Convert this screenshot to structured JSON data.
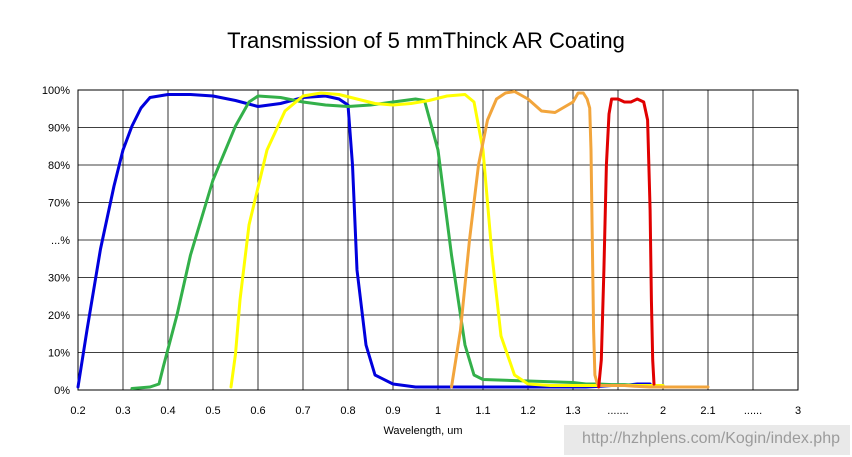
{
  "chart_data": {
    "type": "line",
    "title": "Transmission of 5 mmThinck AR Coating",
    "xlabel": "Wavelength, um",
    "ylabel": "",
    "x_ticks": [
      "0.2",
      "0.3",
      "0.4",
      "0.5",
      "0.6",
      "0.7",
      "0.8",
      "0.9",
      "1",
      "1.1",
      "1.2",
      "1.3",
      ".......",
      "2",
      "2.1",
      "......",
      "3"
    ],
    "y_ticks": [
      "0%",
      "10%",
      "20%",
      "30%",
      "...%",
      "70%",
      "80%",
      "90%",
      "100%"
    ],
    "ylim": [
      0,
      100
    ],
    "grid": true,
    "legend": "none",
    "series": [
      {
        "color": "#0000dd",
        "x": [
          "0.2",
          "0.22",
          "0.25",
          "0.28",
          "0.3",
          "0.32",
          "0.34",
          "0.36",
          "0.4",
          "0.45",
          "0.5",
          "0.55",
          "0.6",
          "0.65",
          "0.7",
          "0.75",
          "0.78",
          "0.8",
          "0.81",
          "0.82",
          "0.84",
          "0.86",
          "0.9",
          "0.95",
          "1",
          "1.1",
          "1.2",
          "1.3",
          "1.4",
          "1.5",
          "1.6",
          "1.7",
          "1.8",
          "1.9"
        ],
        "y": [
          1,
          20,
          47,
          68,
          80,
          88,
          94,
          97.5,
          98.5,
          98.5,
          98,
          96.5,
          94.5,
          95.5,
          97.5,
          98,
          97,
          95,
          75,
          40,
          15,
          5,
          2,
          1,
          1,
          1,
          1,
          1,
          1,
          1.2,
          1.5,
          1.5,
          2,
          2
        ]
      },
      {
        "color": "#33b04a",
        "x": [
          "0.32",
          "0.36",
          "0.38",
          "0.39",
          "0.42",
          "0.45",
          "0.5",
          "0.55",
          "0.58",
          "0.6",
          "0.65",
          "0.7",
          "0.75",
          "0.8",
          "0.85",
          "0.9",
          "0.95",
          "0.97",
          "1",
          "1.03",
          "1.06",
          "1.08",
          "1.1",
          "1.2",
          "1.3",
          "1.4",
          "1.5",
          "1.6",
          "1.7",
          "1.8",
          "1.9",
          "2"
        ],
        "y": [
          0.5,
          1,
          2,
          8,
          25,
          45,
          70,
          88,
          96,
          98,
          97.5,
          96,
          95,
          94.5,
          95,
          96,
          97,
          96.5,
          80,
          45,
          15,
          5,
          3.5,
          3,
          2.5,
          2,
          2,
          1.8,
          1.8,
          1.5,
          1.5,
          1.5
        ]
      },
      {
        "color": "#ffff00",
        "x": [
          "0.54",
          "0.55",
          "0.56",
          "0.58",
          "0.62",
          "0.66",
          "0.7",
          "0.74",
          "0.78",
          "0.82",
          "0.86",
          "0.9",
          "0.94",
          "0.98",
          "1.02",
          "1.06",
          "1.08",
          "1.1",
          "1.12",
          "1.14",
          "1.17",
          "1.2",
          "1.25",
          "1.3",
          "1.4",
          "1.5",
          "1.6",
          "1.7",
          "1.8",
          "1.9",
          "2"
        ],
        "y": [
          1,
          12,
          30,
          55,
          80,
          93,
          98,
          99,
          98.5,
          97,
          95.5,
          95,
          95.5,
          96.5,
          98,
          98.5,
          96,
          80,
          45,
          18,
          5,
          2,
          1.5,
          1.5,
          1.5,
          1.5,
          1.5,
          1.5,
          1.5,
          1.5,
          1.5
        ]
      },
      {
        "color": "#f2a53c",
        "x": [
          "1.03",
          "1.05",
          "1.07",
          "1.09",
          "1.11",
          "1.13",
          "1.15",
          "1.17",
          "1.2",
          "1.23",
          "1.26",
          "1.3",
          "1.34",
          "1.38",
          "1.41",
          "1.43",
          "1.44",
          "1.45",
          "1.46",
          "1.47",
          "1.49",
          "1.52",
          "1.6",
          "1.7",
          "1.8",
          "1.9",
          "2",
          "2.1"
        ],
        "y": [
          1,
          20,
          50,
          75,
          90,
          97,
          99,
          99.5,
          97,
          93,
          92.5,
          96,
          99,
          99,
          97,
          94,
          80,
          50,
          20,
          5,
          2,
          1.5,
          1.5,
          1.5,
          1.2,
          1,
          1,
          1
        ]
      },
      {
        "color": "#e00000",
        "x": [
          "1.5",
          "1.52",
          "1.54",
          "1.56",
          "1.58",
          "1.6",
          "1.65",
          "1.7",
          "1.75",
          "1.8",
          "1.85",
          "1.88",
          "1.9",
          "1.91",
          "1.92",
          "1.93"
        ],
        "y": [
          1,
          10,
          40,
          75,
          92,
          97,
          97,
          96,
          96,
          97,
          96,
          90,
          60,
          30,
          10,
          2
        ]
      }
    ]
  },
  "watermark": "http://hzhplens.com/Kogin/index.php"
}
